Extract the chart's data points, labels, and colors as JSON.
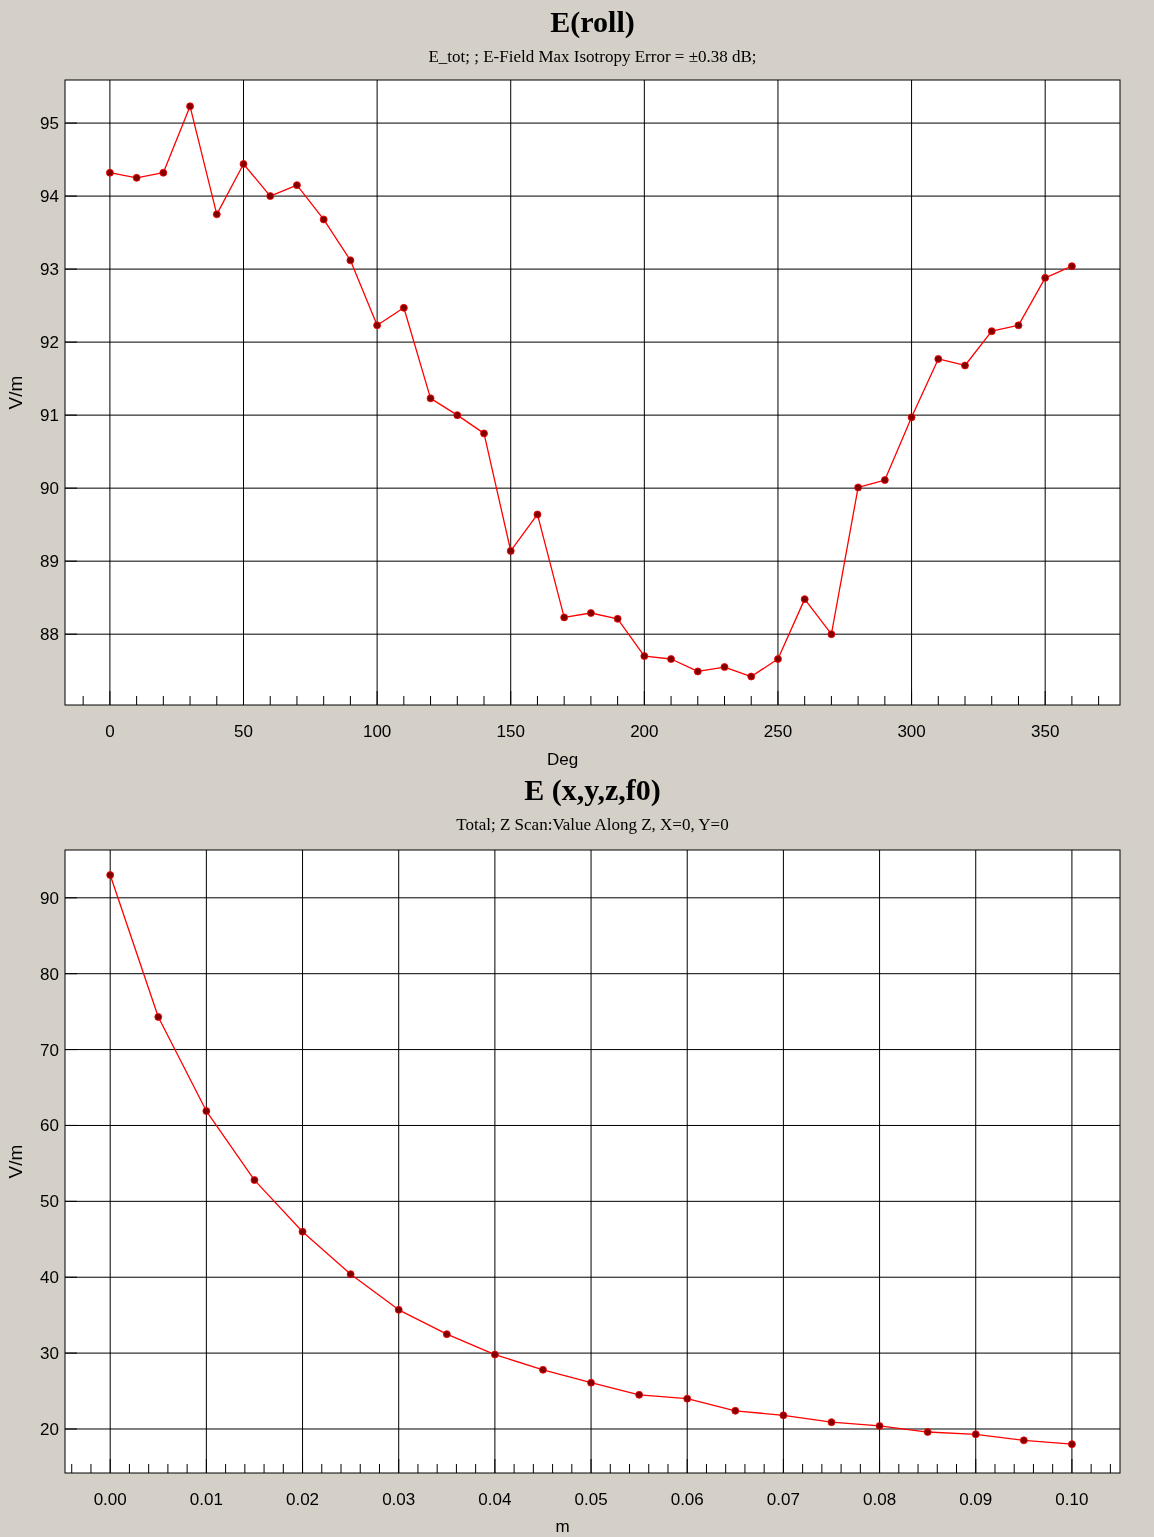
{
  "chart_data": [
    {
      "type": "line",
      "title": "E(roll)",
      "subtitle": "E_tot; ;  E-Field Max Isotropy Error = ±0.38 dB;",
      "xlabel": "Deg",
      "ylabel": "V/m",
      "grid": true,
      "marker": "circle",
      "line_style": "solid",
      "x": [
        0,
        10,
        20,
        30,
        40,
        50,
        60,
        70,
        80,
        90,
        100,
        110,
        120,
        130,
        140,
        150,
        160,
        170,
        180,
        190,
        200,
        210,
        220,
        230,
        240,
        250,
        260,
        270,
        280,
        290,
        300,
        310,
        320,
        330,
        340,
        350,
        360
      ],
      "series": [
        {
          "color": "#ff0000",
          "values": [
            94.32,
            94.25,
            94.32,
            95.23,
            93.75,
            94.44,
            94.0,
            94.15,
            93.68,
            93.12,
            92.23,
            92.47,
            91.23,
            91.0,
            90.75,
            89.14,
            89.64,
            88.23,
            88.29,
            88.21,
            87.7,
            87.66,
            87.49,
            87.55,
            87.42,
            87.66,
            88.48,
            88.0,
            90.01,
            90.11,
            90.97,
            91.77,
            91.68,
            92.15,
            92.23,
            92.88,
            93.04
          ]
        }
      ],
      "xlim": [
        -16.8,
        378
      ],
      "ylim": [
        87.03,
        95.59
      ],
      "xticks": [
        {
          "value": -10,
          "label": null
        },
        0,
        {
          "value": 10,
          "label": null
        },
        {
          "value": 20,
          "label": null
        },
        {
          "value": 30,
          "label": null
        },
        {
          "value": 40,
          "label": null
        },
        50,
        {
          "value": 60,
          "label": null
        },
        {
          "value": 70,
          "label": null
        },
        {
          "value": 80,
          "label": null
        },
        {
          "value": 90,
          "label": null
        },
        100,
        {
          "value": 110,
          "label": null
        },
        {
          "value": 120,
          "label": null
        },
        {
          "value": 130,
          "label": null
        },
        {
          "value": 140,
          "label": null
        },
        150,
        {
          "value": 160,
          "label": null
        },
        {
          "value": 170,
          "label": null
        },
        {
          "value": 180,
          "label": null
        },
        {
          "value": 190,
          "label": null
        },
        200,
        {
          "value": 210,
          "label": null
        },
        {
          "value": 220,
          "label": null
        },
        {
          "value": 230,
          "label": null
        },
        {
          "value": 240,
          "label": null
        },
        250,
        {
          "value": 260,
          "label": null
        },
        {
          "value": 270,
          "label": null
        },
        {
          "value": 280,
          "label": null
        },
        {
          "value": 290,
          "label": null
        },
        300,
        {
          "value": 310,
          "label": null
        },
        {
          "value": 320,
          "label": null
        },
        {
          "value": 330,
          "label": null
        },
        {
          "value": 340,
          "label": null
        },
        350,
        {
          "value": 360,
          "label": null
        },
        {
          "value": 370,
          "label": null
        }
      ],
      "yticks": [
        88,
        89,
        90,
        91,
        92,
        93,
        94,
        95
      ]
    },
    {
      "type": "line",
      "title": "E (x,y,z,f0)",
      "subtitle": "Total; Z Scan:Value Along Z, X=0, Y=0",
      "xlabel": "m",
      "ylabel": "V/m",
      "grid": true,
      "marker": "circle",
      "line_style": "solid",
      "x": [
        0,
        0.005,
        0.01,
        0.015,
        0.02,
        0.025,
        0.03,
        0.035,
        0.04,
        0.045,
        0.05,
        0.055,
        0.06,
        0.065,
        0.07,
        0.075,
        0.08,
        0.085,
        0.09,
        0.095,
        0.1
      ],
      "series": [
        {
          "color": "#ff0000",
          "values": [
            93.0,
            74.3,
            61.9,
            52.8,
            46.0,
            40.4,
            35.7,
            32.5,
            29.8,
            27.8,
            26.1,
            24.5,
            24.0,
            22.4,
            21.8,
            20.9,
            20.4,
            19.6,
            19.3,
            18.5,
            18.0
          ]
        }
      ],
      "xlim": [
        -0.0047,
        0.105
      ],
      "ylim": [
        14.2,
        96.3
      ],
      "xticks": [
        {
          "value": -0.004,
          "label": null
        },
        {
          "value": -0.002,
          "label": null
        },
        {
          "value": 0,
          "label": "0.00"
        },
        {
          "value": 0.002,
          "label": null
        },
        {
          "value": 0.004,
          "label": null
        },
        {
          "value": 0.006,
          "label": null
        },
        {
          "value": 0.008,
          "label": null
        },
        {
          "value": 0.01,
          "label": "0.01"
        },
        {
          "value": 0.012,
          "label": null
        },
        {
          "value": 0.014,
          "label": null
        },
        {
          "value": 0.016,
          "label": null
        },
        {
          "value": 0.018,
          "label": null
        },
        {
          "value": 0.02,
          "label": "0.02"
        },
        {
          "value": 0.022,
          "label": null
        },
        {
          "value": 0.024,
          "label": null
        },
        {
          "value": 0.026,
          "label": null
        },
        {
          "value": 0.028,
          "label": null
        },
        {
          "value": 0.03,
          "label": "0.03"
        },
        {
          "value": 0.032,
          "label": null
        },
        {
          "value": 0.034,
          "label": null
        },
        {
          "value": 0.036,
          "label": null
        },
        {
          "value": 0.038,
          "label": null
        },
        {
          "value": 0.04,
          "label": "0.04"
        },
        {
          "value": 0.042,
          "label": null
        },
        {
          "value": 0.044,
          "label": null
        },
        {
          "value": 0.046,
          "label": null
        },
        {
          "value": 0.048,
          "label": null
        },
        {
          "value": 0.05,
          "label": "0.05"
        },
        {
          "value": 0.052,
          "label": null
        },
        {
          "value": 0.054,
          "label": null
        },
        {
          "value": 0.056,
          "label": null
        },
        {
          "value": 0.058,
          "label": null
        },
        {
          "value": 0.06,
          "label": "0.06"
        },
        {
          "value": 0.062,
          "label": null
        },
        {
          "value": 0.064,
          "label": null
        },
        {
          "value": 0.066,
          "label": null
        },
        {
          "value": 0.068,
          "label": null
        },
        {
          "value": 0.07,
          "label": "0.07"
        },
        {
          "value": 0.072,
          "label": null
        },
        {
          "value": 0.074,
          "label": null
        },
        {
          "value": 0.076,
          "label": null
        },
        {
          "value": 0.078,
          "label": null
        },
        {
          "value": 0.08,
          "label": "0.08"
        },
        {
          "value": 0.082,
          "label": null
        },
        {
          "value": 0.084,
          "label": null
        },
        {
          "value": 0.086,
          "label": null
        },
        {
          "value": 0.088,
          "label": null
        },
        {
          "value": 0.09,
          "label": "0.09"
        },
        {
          "value": 0.092,
          "label": null
        },
        {
          "value": 0.094,
          "label": null
        },
        {
          "value": 0.096,
          "label": null
        },
        {
          "value": 0.098,
          "label": null
        },
        {
          "value": 0.1,
          "label": "0.10"
        },
        {
          "value": 0.102,
          "label": null
        },
        {
          "value": 0.104,
          "label": null
        }
      ],
      "yticks": [
        20,
        30,
        40,
        50,
        60,
        70,
        80,
        90
      ]
    }
  ]
}
